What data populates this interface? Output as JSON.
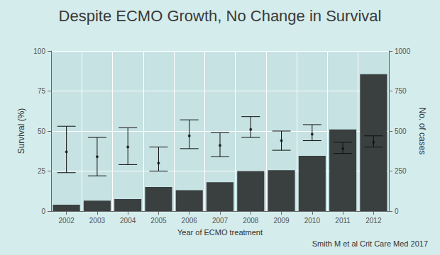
{
  "chart_data": {
    "type": "bar",
    "title": "Despite ECMO Growth, No Change in Survival",
    "x_label": "Year of ECMO treatment",
    "y_label": "Survival (%)",
    "y2_label": "No. of cases",
    "source": "Smith M et al Crit Care Med 2017",
    "categories": [
      "2002",
      "2003",
      "2004",
      "2005",
      "2006",
      "2007",
      "2008",
      "2009",
      "2010",
      "2011",
      "2012"
    ],
    "series": [
      {
        "type": "bar",
        "axis": "y2",
        "color": "#3a3f40",
        "values": [
          40,
          65,
          75,
          150,
          130,
          180,
          250,
          255,
          345,
          510,
          855
        ]
      },
      {
        "type": "scatter",
        "color": "#111111",
        "marker": "circle",
        "values": [
          37,
          34,
          40,
          30,
          47,
          41,
          51,
          44,
          48,
          39,
          43
        ],
        "ci_low": [
          24,
          22,
          29,
          25,
          39,
          34,
          46,
          38,
          44,
          36,
          40
        ],
        "ci_high": [
          53,
          46,
          52,
          40,
          57,
          49,
          59,
          50,
          54,
          43,
          47
        ]
      }
    ],
    "ylim": [
      0,
      100
    ],
    "yticks": [
      0,
      25,
      50,
      75,
      100
    ],
    "y2lim": [
      0,
      1000
    ],
    "y2ticks": [
      0,
      250,
      500,
      750,
      1000
    ],
    "grid": true
  }
}
